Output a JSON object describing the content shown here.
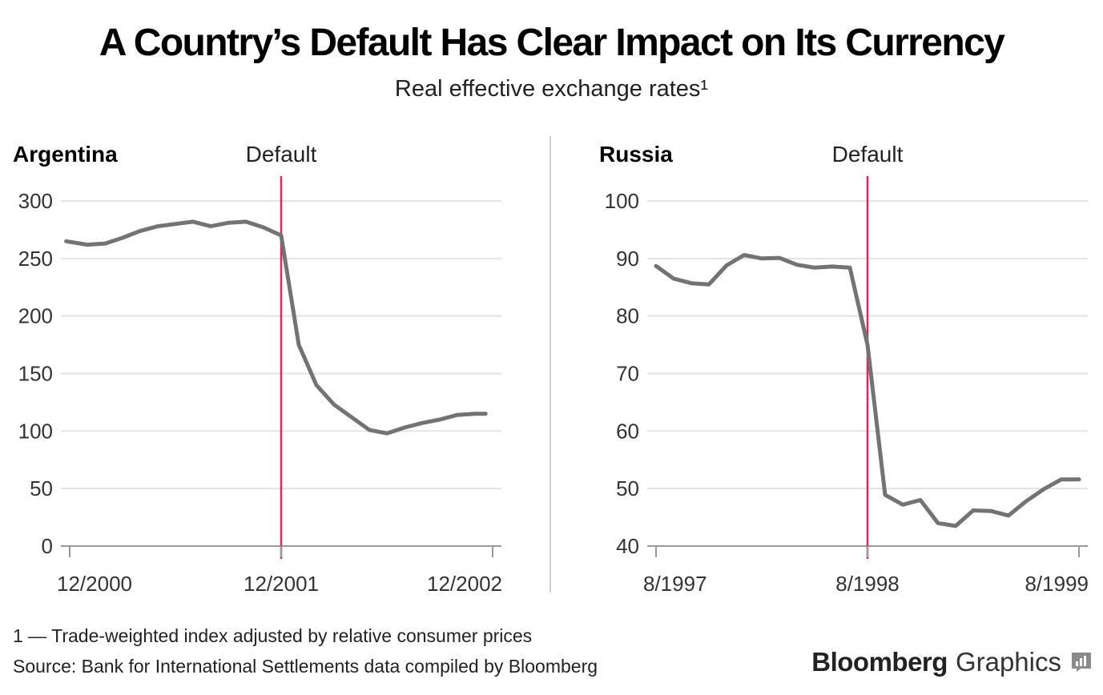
{
  "title": "A Country’s Default Has Clear Impact on Its Currency",
  "subtitle": "Real effective exchange rates¹",
  "footnote": "1 — Trade-weighted index adjusted by relative consumer prices",
  "source": "Source: Bank for International Settlements data compiled by Bloomberg",
  "brand": {
    "name": "Bloomberg",
    "suffix": "Graphics",
    "icon": "chart-icon"
  },
  "colors": {
    "series": "#737373",
    "default_marker": "#e0245e",
    "grid": "#e3e3e3",
    "axis": "#999999",
    "divider": "#d0d0d0"
  },
  "chart_data": [
    {
      "type": "line",
      "panel": "Argentina",
      "annotation": "Default",
      "default_x": 12,
      "ylim": [
        0,
        300
      ],
      "yticks": [
        0,
        50,
        100,
        150,
        200,
        250,
        300
      ],
      "xlim": [
        0,
        24
      ],
      "xticks": [
        {
          "x": 0,
          "label": "12/2000"
        },
        {
          "x": 12,
          "label": "12/2001"
        },
        {
          "x": 24,
          "label": "12/2002"
        }
      ],
      "x": [
        -0.2,
        1,
        2,
        3,
        4,
        5,
        6,
        7,
        8,
        9,
        10,
        11,
        12,
        13,
        14,
        15,
        16,
        17,
        18,
        19,
        20,
        21,
        22,
        23,
        23.6
      ],
      "values": [
        265,
        262,
        263,
        268,
        274,
        278,
        280,
        282,
        278,
        281,
        282,
        277,
        270,
        175,
        140,
        123,
        112,
        101,
        98,
        103,
        107,
        110,
        114,
        115,
        115
      ]
    },
    {
      "type": "line",
      "panel": "Russia",
      "annotation": "Default",
      "default_x": 12,
      "ylim": [
        40,
        100
      ],
      "yticks": [
        40,
        50,
        60,
        70,
        80,
        90,
        100
      ],
      "xlim": [
        0,
        24
      ],
      "xticks": [
        {
          "x": 0,
          "label": "8/1997"
        },
        {
          "x": 12,
          "label": "8/1998"
        },
        {
          "x": 24,
          "label": "8/1999"
        }
      ],
      "x": [
        0,
        1,
        2,
        3,
        4,
        5,
        6,
        7,
        8,
        9,
        10,
        11,
        12,
        13,
        14,
        15,
        16,
        17,
        18,
        19,
        20,
        21,
        22,
        23,
        24
      ],
      "values": [
        88.7,
        86.5,
        85.7,
        85.5,
        88.8,
        90.6,
        90.0,
        90.1,
        88.9,
        88.4,
        88.6,
        88.4,
        75.0,
        48.9,
        47.2,
        48.0,
        44.0,
        43.5,
        46.2,
        46.1,
        45.3,
        47.8,
        49.9,
        51.6,
        51.6
      ]
    }
  ]
}
